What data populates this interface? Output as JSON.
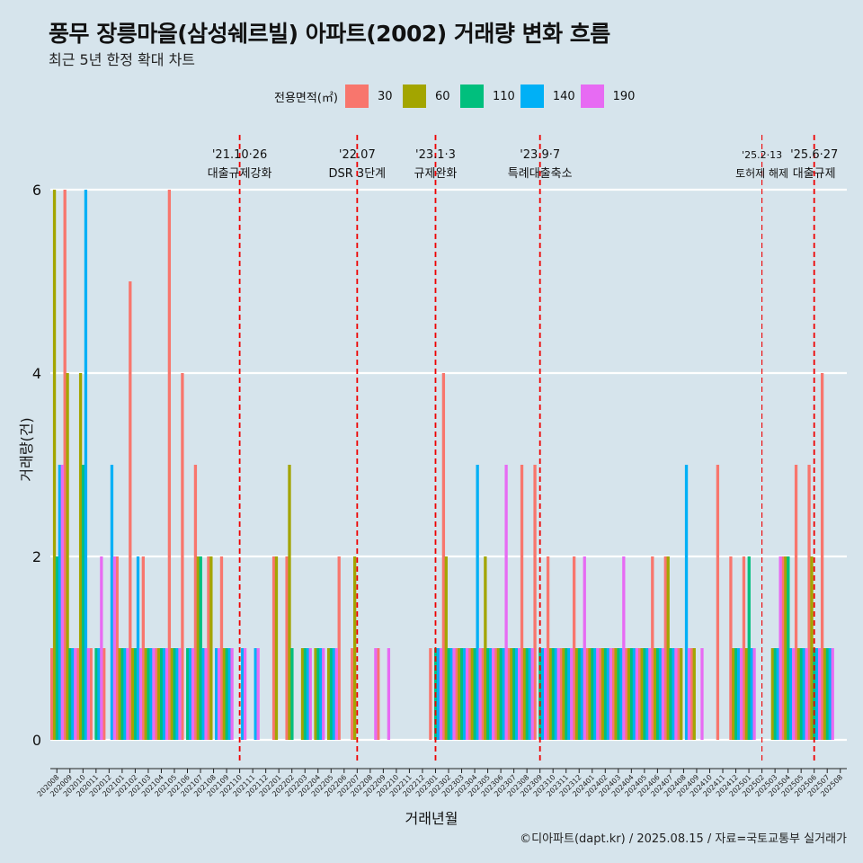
{
  "chart_data": {
    "type": "bar",
    "title": "풍무 장릉마을(삼성쉐르빌) 아파트(2002) 거래량 변화 흐름",
    "subtitle": "최근 5년 한정 확대 차트",
    "xlabel": "거래년월",
    "ylabel": "거래량(건)",
    "caption": "©디아파트(dapt.kr) / 2025.08.15 / 자료=국토교통부 실거래가",
    "legend_title": "전용면적(㎡)",
    "legend_position": "top",
    "ylim": [
      0,
      6
    ],
    "yticks": [
      0,
      2,
      4,
      6
    ],
    "grid": true,
    "areas": [
      "30",
      "60",
      "110",
      "140",
      "190"
    ],
    "colors": {
      "30": "#f8766d",
      "60": "#a3a500",
      "110": "#00bf7d",
      "140": "#00b0f6",
      "190": "#e76bf3"
    },
    "categories": [
      "202008",
      "202009",
      "202010",
      "202011",
      "202012",
      "202101",
      "202102",
      "202103",
      "202104",
      "202105",
      "202106",
      "202107",
      "202108",
      "202109",
      "202110",
      "202111",
      "202112",
      "202201",
      "202202",
      "202203",
      "202204",
      "202205",
      "202206",
      "202207",
      "202208",
      "202209",
      "202210",
      "202211",
      "202212",
      "202301",
      "202302",
      "202303",
      "202304",
      "202305",
      "202306",
      "202307",
      "202308",
      "202309",
      "202310",
      "202311",
      "202312",
      "202401",
      "202402",
      "202403",
      "202404",
      "202405",
      "202406",
      "202407",
      "202408",
      "202409",
      "202410",
      "202411",
      "202412",
      "202501",
      "202502",
      "202503",
      "202504",
      "202505",
      "202506",
      "202507",
      "202508"
    ],
    "series": [
      {
        "name": "30",
        "values": [
          1,
          6,
          1,
          1,
          1,
          2,
          5,
          2,
          1,
          6,
          4,
          3,
          2,
          2,
          0,
          0,
          0,
          2,
          2,
          0,
          0,
          0,
          2,
          1,
          0,
          1,
          0,
          0,
          0,
          1,
          4,
          1,
          1,
          1,
          1,
          1,
          3,
          3,
          2,
          1,
          2,
          1,
          1,
          1,
          1,
          1,
          2,
          2,
          1,
          1,
          0,
          3,
          2,
          2,
          0,
          0,
          2,
          3,
          3,
          4,
          0
        ]
      },
      {
        "name": "60",
        "values": [
          6,
          4,
          4,
          0,
          0,
          1,
          1,
          1,
          1,
          1,
          0,
          2,
          2,
          1,
          0,
          0,
          0,
          2,
          3,
          1,
          1,
          1,
          0,
          2,
          0,
          0,
          0,
          0,
          0,
          0,
          2,
          1,
          1,
          2,
          1,
          1,
          1,
          0,
          1,
          1,
          1,
          1,
          1,
          1,
          1,
          1,
          1,
          2,
          1,
          1,
          0,
          0,
          1,
          1,
          0,
          1,
          2,
          1,
          2,
          1,
          0
        ]
      },
      {
        "name": "110",
        "values": [
          2,
          1,
          3,
          1,
          0,
          1,
          1,
          1,
          1,
          1,
          1,
          2,
          0,
          1,
          0,
          0,
          0,
          0,
          1,
          1,
          1,
          1,
          0,
          0,
          0,
          0,
          0,
          0,
          0,
          1,
          1,
          1,
          1,
          1,
          1,
          1,
          1,
          1,
          1,
          1,
          1,
          1,
          1,
          1,
          1,
          1,
          1,
          1,
          0,
          0,
          0,
          0,
          1,
          2,
          0,
          1,
          2,
          1,
          1,
          1,
          0
        ]
      },
      {
        "name": "140",
        "values": [
          3,
          1,
          6,
          1,
          3,
          1,
          2,
          1,
          1,
          1,
          1,
          1,
          1,
          1,
          1,
          1,
          0,
          0,
          0,
          1,
          1,
          1,
          0,
          0,
          0,
          0,
          0,
          0,
          0,
          1,
          1,
          1,
          3,
          1,
          1,
          1,
          1,
          1,
          1,
          1,
          1,
          1,
          1,
          1,
          1,
          1,
          1,
          1,
          3,
          0,
          0,
          0,
          1,
          1,
          0,
          1,
          1,
          1,
          1,
          1,
          0
        ]
      },
      {
        "name": "190",
        "values": [
          3,
          1,
          1,
          2,
          2,
          1,
          1,
          1,
          1,
          1,
          1,
          1,
          1,
          1,
          1,
          1,
          0,
          0,
          0,
          1,
          1,
          1,
          0,
          0,
          1,
          1,
          0,
          0,
          0,
          1,
          1,
          1,
          1,
          1,
          3,
          1,
          1,
          1,
          1,
          1,
          2,
          1,
          1,
          2,
          1,
          1,
          1,
          1,
          1,
          1,
          0,
          0,
          1,
          1,
          0,
          2,
          1,
          1,
          1,
          1,
          0
        ]
      }
    ],
    "annotations": [
      {
        "at": "202110",
        "date": "'21.10·26",
        "label": "대출규제강화",
        "emphasis": "strong"
      },
      {
        "at": "202207",
        "date": "'22.07",
        "label": "DSR 3단계",
        "emphasis": "strong"
      },
      {
        "at": "202301",
        "date": "'23.1·3",
        "label": "규제완화",
        "emphasis": "strong"
      },
      {
        "at": "202309",
        "date": "'23.9·7",
        "label": "특례대출축소",
        "emphasis": "strong"
      },
      {
        "at": "202502",
        "date": "'25.2·13",
        "label": "토허제 해제",
        "emphasis": "light"
      },
      {
        "at": "202506",
        "date": "'25.6·27",
        "label": "대출규제",
        "emphasis": "strong"
      }
    ]
  }
}
